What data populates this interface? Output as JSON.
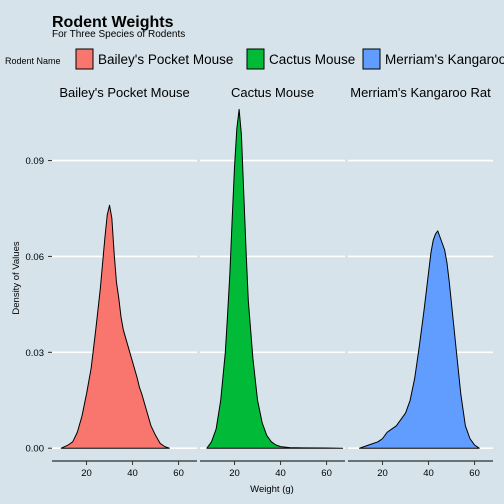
{
  "chart_data": {
    "type": "area",
    "title": "Rodent Weights",
    "subtitle": "For Three Species of Rodents",
    "xlabel": "Weight (g)",
    "ylabel": "Density of Values",
    "legend_title": "Rodent Name",
    "legend_position": "top",
    "grid": "horizontal",
    "xlim": [
      5,
      68
    ],
    "ylim": [
      -0.004,
      0.108
    ],
    "xticks": [
      20,
      40,
      60
    ],
    "yticks": [
      0.0,
      0.03,
      0.06,
      0.09
    ],
    "ytick_labels": [
      "0.00",
      "0.03",
      "0.06",
      "0.09"
    ],
    "series": [
      {
        "name": "Bailey's Pocket Mouse",
        "color": "#F8766D",
        "x": [
          9,
          12,
          14,
          16,
          18,
          20,
          22,
          24,
          26,
          27,
          28,
          29,
          30,
          31,
          32,
          33,
          34,
          35,
          36,
          38,
          40,
          42,
          43,
          44,
          46,
          48,
          50,
          52,
          54,
          56
        ],
        "y": [
          0,
          0.001,
          0.002,
          0.005,
          0.01,
          0.017,
          0.025,
          0.037,
          0.05,
          0.058,
          0.066,
          0.073,
          0.076,
          0.072,
          0.061,
          0.052,
          0.047,
          0.041,
          0.037,
          0.032,
          0.027,
          0.022,
          0.019,
          0.017,
          0.012,
          0.007,
          0.004,
          0.0015,
          0.0005,
          0
        ]
      },
      {
        "name": "Cactus Mouse",
        "color": "#00BA38",
        "x": [
          8,
          10,
          12,
          14,
          16,
          17,
          18,
          19,
          20,
          21,
          22,
          23,
          24,
          25,
          26,
          28,
          30,
          32,
          34,
          36,
          38,
          40,
          44,
          50,
          60,
          67
        ],
        "y": [
          0,
          0.002,
          0.006,
          0.015,
          0.03,
          0.042,
          0.055,
          0.072,
          0.088,
          0.1,
          0.106,
          0.098,
          0.08,
          0.062,
          0.046,
          0.028,
          0.015,
          0.008,
          0.004,
          0.002,
          0.001,
          0.0005,
          0.0002,
          0.0001,
          5e-05,
          0
        ]
      },
      {
        "name": "Merriam's Kangaroo Rat",
        "color": "#619CFF",
        "x": [
          10,
          14,
          18,
          20,
          22,
          24,
          26,
          28,
          30,
          32,
          34,
          36,
          38,
          40,
          41,
          42,
          43,
          44,
          45,
          46,
          47,
          48,
          49,
          50,
          52,
          54,
          56,
          58,
          60,
          62
        ],
        "y": [
          0,
          0.001,
          0.002,
          0.003,
          0.005,
          0.006,
          0.007,
          0.009,
          0.011,
          0.015,
          0.022,
          0.032,
          0.043,
          0.055,
          0.061,
          0.065,
          0.067,
          0.068,
          0.066,
          0.064,
          0.062,
          0.058,
          0.052,
          0.045,
          0.031,
          0.017,
          0.007,
          0.003,
          0.001,
          0
        ]
      }
    ]
  }
}
